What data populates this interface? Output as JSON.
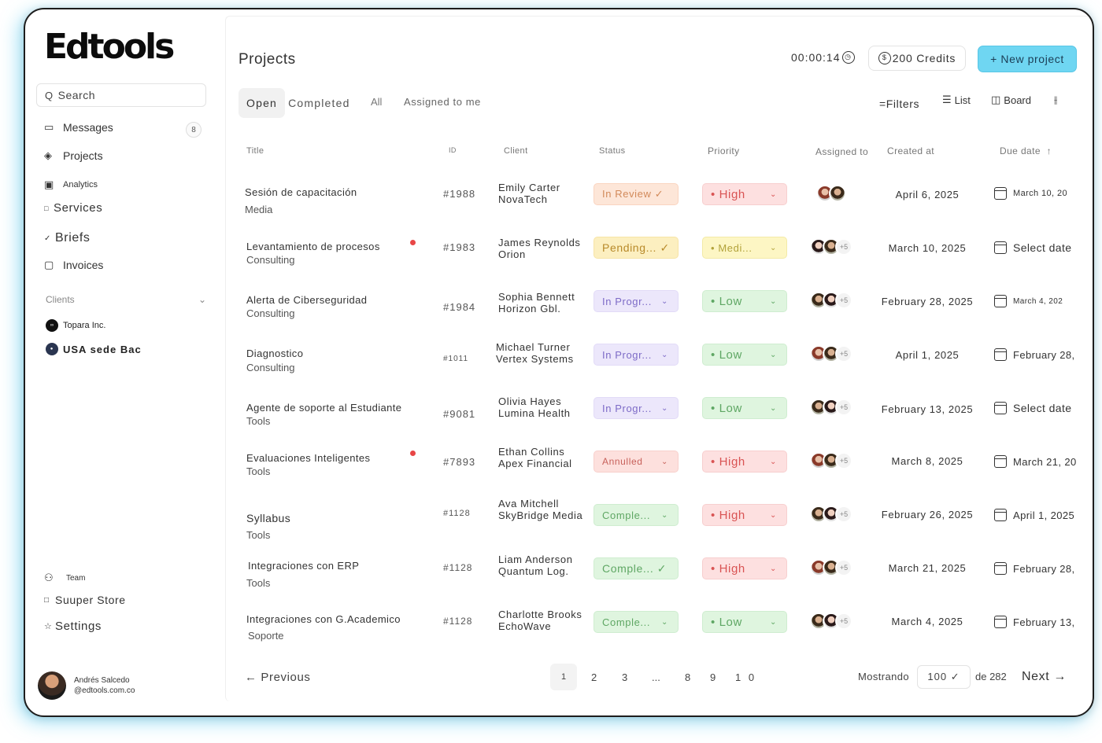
{
  "app": {
    "logo": "Edtools"
  },
  "sidebar": {
    "search_placeholder": "Search",
    "items": [
      {
        "label": "Messages",
        "icon": "inbox-icon",
        "badge": "8"
      },
      {
        "label": "Projects",
        "icon": "layers-icon"
      },
      {
        "label": "Analytics",
        "icon": "chart-icon"
      },
      {
        "label": "Services",
        "icon": "box-icon"
      },
      {
        "label": "Briefs",
        "icon": "check-icon"
      },
      {
        "label": "Invoices",
        "icon": "invoice-icon"
      }
    ],
    "clients_heading": "Clients",
    "clients": [
      {
        "label": "Topara Inc.",
        "icon": "topara-logo-icon"
      },
      {
        "label": "USA  sede Bac",
        "icon": "client-logo-icon"
      }
    ],
    "bottom_items": [
      {
        "label": "Team",
        "icon": "users-icon"
      },
      {
        "label": "Suuper Store",
        "icon": "square-icon"
      },
      {
        "label": "Settings",
        "icon": "star-icon"
      }
    ],
    "user": {
      "name": "Andrés Salcedo",
      "email": "@edtools.com.co"
    }
  },
  "header": {
    "title": "Projects",
    "timer": "00:00:14",
    "credits": "200 Credits",
    "new_project": "+ New project"
  },
  "tabs": {
    "open": "Open",
    "completed": "Completed",
    "all": "All",
    "assigned": "Assigned to me"
  },
  "view": {
    "filters": "=Filters",
    "list": "List",
    "board": "Board"
  },
  "table": {
    "headers": {
      "title": "Title",
      "id": "ID",
      "client": "Client",
      "status": "Status",
      "priority": "Priority",
      "assigned": "Assigned to",
      "created": "Created at",
      "due": "Due date"
    },
    "rows": [
      {
        "title": "Sesión de capacitación",
        "subtitle": "Media",
        "id": "#1988",
        "client": "Emily Carter",
        "company": "NovaTech",
        "status": "In Review ✓",
        "priority": "• High",
        "more": "",
        "created": "April 6, 2025",
        "due": "March 10, 20"
      },
      {
        "title": "Levantamiento de procesos",
        "subtitle": "Consulting",
        "id": "#1983",
        "client": "James Reynolds",
        "company": "Orion",
        "status": "Pending... ✓",
        "priority": "• Medi...",
        "more": "+5",
        "created": "March 10, 2025",
        "due": "Select date"
      },
      {
        "title": "Alerta de Ciberseguridad",
        "subtitle": "Consulting",
        "id": "#1984",
        "client": "Sophia Bennett",
        "company": "Horizon Gbl.",
        "status": "In Progr...",
        "priority": "• Low",
        "more": "+5",
        "created": "February 28, 2025",
        "due": "March 4, 202"
      },
      {
        "title": "Diagnostico",
        "subtitle": "Consulting",
        "id": "#1011",
        "client": "Michael Turner",
        "company": "Vertex Systems",
        "status": "In Progr...",
        "priority": "• Low",
        "more": "+5",
        "created": "April 1, 2025",
        "due": "February 28,"
      },
      {
        "title": "Agente de soporte al Estudiante",
        "subtitle": "Tools",
        "id": "#9081",
        "client": "Olivia Hayes",
        "company": "Lumina Health",
        "status": "In Progr...",
        "priority": "• Low",
        "more": "+5",
        "created": "February 13, 2025",
        "due": "Select date"
      },
      {
        "title": "Evaluaciones Inteligentes",
        "subtitle": "Tools",
        "id": "#7893",
        "client": "Ethan Collins",
        "company": "Apex Financial",
        "status": "Annulled",
        "priority": "• High",
        "more": "+5",
        "created": "March 8, 2025",
        "due": "March 21, 20"
      },
      {
        "title": "Syllabus",
        "subtitle": "Tools",
        "id": "#1128",
        "client": "Ava Mitchell",
        "company": "SkyBridge Media",
        "status": "Comple...",
        "priority": "• High",
        "more": "+5",
        "created": "February 26, 2025",
        "due": "April 1, 2025"
      },
      {
        "title": "Integraciones con ERP",
        "subtitle": "Tools",
        "id": "#1128",
        "client": "Liam Anderson",
        "company": "Quantum Log.",
        "status": "Comple... ✓",
        "priority": "• High",
        "more": "+5",
        "created": "March 21, 2025",
        "due": "February 28,"
      },
      {
        "title": "Integraciones con G.Academico",
        "subtitle": "Soporte",
        "id": "#1128",
        "client": "Charlotte Brooks",
        "company": "EchoWave",
        "status": "Comple...",
        "priority": "• Low",
        "more": "+5",
        "created": "March 4, 2025",
        "due": "February 13,"
      }
    ]
  },
  "pagination": {
    "previous": "← Previous",
    "pages": [
      "1",
      "2",
      "3",
      "...",
      "8",
      "9",
      "1 0"
    ],
    "showing": "Mostrando",
    "page_size": "100 ✓",
    "of_total": "de 282",
    "next": "Next →"
  }
}
